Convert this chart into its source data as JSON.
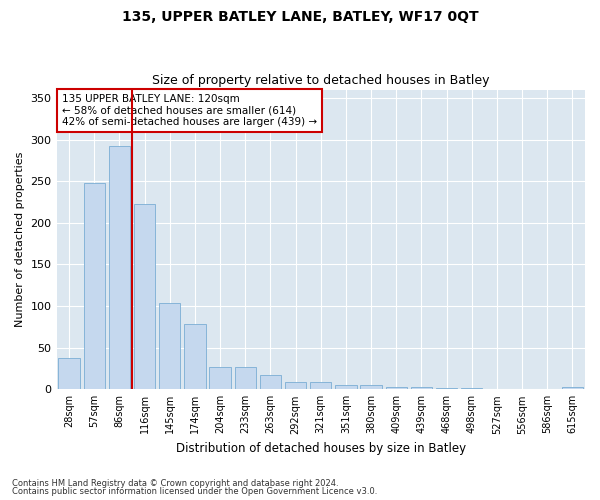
{
  "title": "135, UPPER BATLEY LANE, BATLEY, WF17 0QT",
  "subtitle": "Size of property relative to detached houses in Batley",
  "xlabel": "Distribution of detached houses by size in Batley",
  "ylabel": "Number of detached properties",
  "categories": [
    "28sqm",
    "57sqm",
    "86sqm",
    "116sqm",
    "145sqm",
    "174sqm",
    "204sqm",
    "233sqm",
    "263sqm",
    "292sqm",
    "321sqm",
    "351sqm",
    "380sqm",
    "409sqm",
    "439sqm",
    "468sqm",
    "498sqm",
    "527sqm",
    "556sqm",
    "586sqm",
    "615sqm"
  ],
  "values": [
    38,
    248,
    292,
    222,
    104,
    79,
    27,
    27,
    17,
    9,
    9,
    5,
    5,
    3,
    3,
    2,
    2,
    0,
    0,
    0,
    3
  ],
  "bar_color": "#c5d8ee",
  "bar_edge_color": "#7badd4",
  "vline_color": "#cc0000",
  "annotation_text": "135 UPPER BATLEY LANE: 120sqm\n← 58% of detached houses are smaller (614)\n42% of semi-detached houses are larger (439) →",
  "annotation_box_color": "#ffffff",
  "annotation_box_edge": "#cc0000",
  "ylim": [
    0,
    360
  ],
  "yticks": [
    0,
    50,
    100,
    150,
    200,
    250,
    300,
    350
  ],
  "plot_bg_color": "#dce7f0",
  "fig_bg_color": "#ffffff",
  "footer_line1": "Contains HM Land Registry data © Crown copyright and database right 2024.",
  "footer_line2": "Contains public sector information licensed under the Open Government Licence v3.0."
}
